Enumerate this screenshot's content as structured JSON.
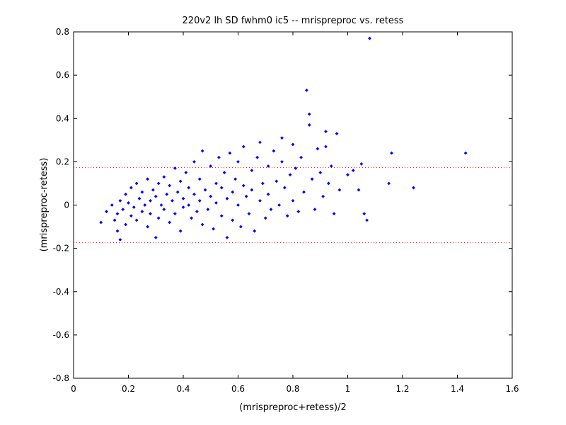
{
  "chart_data": {
    "type": "scatter",
    "title": "220v2 lh SD fwhm0 ic5 -- mrispreproc vs. retess",
    "xlabel": "(mrispreproc+retess)/2",
    "ylabel": "(mrispreproc-retess)",
    "xlim": [
      0,
      1.6
    ],
    "ylim": [
      -0.8,
      0.8
    ],
    "x_ticks": [
      0,
      0.2,
      0.4,
      0.6,
      0.8,
      1.0,
      1.2,
      1.4,
      1.6
    ],
    "x_tick_labels": [
      "0",
      "0.2",
      "0.4",
      "0.6",
      "0.8",
      "1",
      "1.2",
      "1.4",
      "1.6"
    ],
    "y_ticks": [
      -0.8,
      -0.6,
      -0.4,
      -0.2,
      0,
      0.2,
      0.4,
      0.6,
      0.8
    ],
    "y_tick_labels": [
      "-0.8",
      "-0.6",
      "-0.4",
      "-0.2",
      "0",
      "0.2",
      "0.4",
      "0.6",
      "0.8"
    ],
    "grid": false,
    "marker_color": "#0000ff",
    "reference_line_color": "#ff0000",
    "reference_lines": [
      0.174,
      -0.174
    ],
    "series": [
      {
        "points": [
          [
            0.1,
            -0.08
          ],
          [
            0.12,
            -0.03
          ],
          [
            0.14,
            0.0
          ],
          [
            0.15,
            -0.07
          ],
          [
            0.16,
            -0.12
          ],
          [
            0.16,
            -0.04
          ],
          [
            0.17,
            -0.16
          ],
          [
            0.17,
            0.02
          ],
          [
            0.18,
            -0.02
          ],
          [
            0.19,
            -0.09
          ],
          [
            0.19,
            0.05
          ],
          [
            0.2,
            0.01
          ],
          [
            0.21,
            -0.05
          ],
          [
            0.21,
            0.08
          ],
          [
            0.22,
            -0.01
          ],
          [
            0.23,
            0.1
          ],
          [
            0.23,
            -0.07
          ],
          [
            0.24,
            0.03
          ],
          [
            0.25,
            -0.03
          ],
          [
            0.25,
            0.06
          ],
          [
            0.26,
            0.0
          ],
          [
            0.27,
            -0.1
          ],
          [
            0.27,
            0.12
          ],
          [
            0.28,
            0.02
          ],
          [
            0.28,
            -0.04
          ],
          [
            0.29,
            0.07
          ],
          [
            0.3,
            -0.15
          ],
          [
            0.3,
            0.04
          ],
          [
            0.31,
            -0.06
          ],
          [
            0.31,
            0.1
          ],
          [
            0.32,
            0.0
          ],
          [
            0.33,
            0.13
          ],
          [
            0.33,
            -0.02
          ],
          [
            0.34,
            0.05
          ],
          [
            0.35,
            -0.08
          ],
          [
            0.35,
            0.09
          ],
          [
            0.36,
            0.02
          ],
          [
            0.37,
            0.17
          ],
          [
            0.37,
            -0.04
          ],
          [
            0.38,
            0.06
          ],
          [
            0.39,
            -0.12
          ],
          [
            0.39,
            0.11
          ],
          [
            0.4,
            0.03
          ],
          [
            0.4,
            -0.01
          ],
          [
            0.41,
            0.15
          ],
          [
            0.42,
            0.0
          ],
          [
            0.42,
            0.08
          ],
          [
            0.43,
            -0.06
          ],
          [
            0.44,
            0.2
          ],
          [
            0.44,
            0.05
          ],
          [
            0.45,
            -0.03
          ],
          [
            0.46,
            0.12
          ],
          [
            0.46,
            0.02
          ],
          [
            0.47,
            -0.09
          ],
          [
            0.47,
            0.25
          ],
          [
            0.48,
            0.07
          ],
          [
            0.49,
            -0.02
          ],
          [
            0.5,
            0.18
          ],
          [
            0.5,
            0.04
          ],
          [
            0.51,
            -0.11
          ],
          [
            0.52,
            0.1
          ],
          [
            0.52,
            0.01
          ],
          [
            0.53,
            0.22
          ],
          [
            0.54,
            -0.05
          ],
          [
            0.54,
            0.08
          ],
          [
            0.55,
            0.15
          ],
          [
            0.56,
            -0.15
          ],
          [
            0.56,
            0.03
          ],
          [
            0.57,
            0.24
          ],
          [
            0.58,
            0.06
          ],
          [
            0.58,
            -0.07
          ],
          [
            0.59,
            0.12
          ],
          [
            0.6,
            0.0
          ],
          [
            0.6,
            0.2
          ],
          [
            0.61,
            -0.1
          ],
          [
            0.62,
            0.09
          ],
          [
            0.62,
            0.27
          ],
          [
            0.63,
            0.04
          ],
          [
            0.64,
            -0.04
          ],
          [
            0.65,
            0.16
          ],
          [
            0.65,
            0.07
          ],
          [
            0.66,
            -0.12
          ],
          [
            0.67,
            0.22
          ],
          [
            0.68,
            0.02
          ],
          [
            0.68,
            0.29
          ],
          [
            0.69,
            0.1
          ],
          [
            0.7,
            -0.06
          ],
          [
            0.71,
            0.18
          ],
          [
            0.71,
            0.05
          ],
          [
            0.72,
            -0.02
          ],
          [
            0.73,
            0.25
          ],
          [
            0.74,
            0.11
          ],
          [
            0.75,
            0.0
          ],
          [
            0.76,
            0.2
          ],
          [
            0.76,
            0.31
          ],
          [
            0.77,
            0.08
          ],
          [
            0.78,
            -0.05
          ],
          [
            0.79,
            0.14
          ],
          [
            0.8,
            0.28
          ],
          [
            0.8,
            0.02
          ],
          [
            0.81,
            0.17
          ],
          [
            0.82,
            -0.03
          ],
          [
            0.83,
            0.22
          ],
          [
            0.84,
            0.06
          ],
          [
            0.85,
            0.53
          ],
          [
            0.86,
            0.42
          ],
          [
            0.86,
            0.37
          ],
          [
            0.87,
            0.12
          ],
          [
            0.88,
            -0.02
          ],
          [
            0.89,
            0.26
          ],
          [
            0.9,
            0.15
          ],
          [
            0.91,
            0.04
          ],
          [
            0.92,
            0.27
          ],
          [
            0.92,
            0.34
          ],
          [
            0.93,
            0.1
          ],
          [
            0.94,
            0.18
          ],
          [
            0.95,
            -0.04
          ],
          [
            0.96,
            0.33
          ],
          [
            0.97,
            0.07
          ],
          [
            1.0,
            0.14
          ],
          [
            1.02,
            0.16
          ],
          [
            1.04,
            0.07
          ],
          [
            1.05,
            0.19
          ],
          [
            1.06,
            -0.04
          ],
          [
            1.07,
            -0.07
          ],
          [
            1.08,
            0.77
          ],
          [
            1.15,
            0.1
          ],
          [
            1.16,
            0.24
          ],
          [
            1.24,
            0.08
          ],
          [
            1.43,
            0.24
          ]
        ]
      }
    ]
  }
}
